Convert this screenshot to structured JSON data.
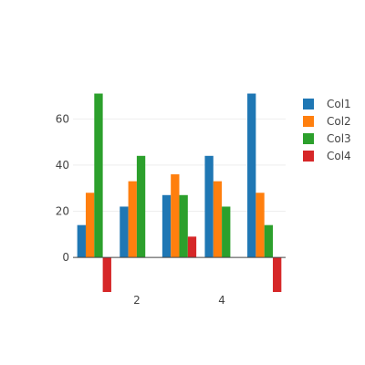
{
  "chart_data": {
    "type": "bar",
    "title": "",
    "xlabel": "",
    "ylabel": "",
    "x": [
      1,
      2,
      3,
      4,
      5
    ],
    "x_ticks": [
      "2",
      "4"
    ],
    "x_tick_values": [
      2,
      4
    ],
    "y_ticks": [
      "0",
      "20",
      "40",
      "60"
    ],
    "y_tick_values": [
      0,
      20,
      40,
      60
    ],
    "ylim": [
      -15,
      72
    ],
    "grid": true,
    "legend_position": "top-right",
    "series": [
      {
        "name": "Col1",
        "color": "#1f77b4",
        "values": [
          14,
          22,
          27,
          44,
          71
        ]
      },
      {
        "name": "Col2",
        "color": "#ff7f0e",
        "values": [
          28,
          33,
          36,
          33,
          28
        ]
      },
      {
        "name": "Col3",
        "color": "#2ca02c",
        "values": [
          71,
          44,
          27,
          22,
          14
        ]
      },
      {
        "name": "Col4",
        "color": "#d62728",
        "values": [
          -15,
          0,
          9,
          0,
          -15
        ]
      }
    ]
  }
}
